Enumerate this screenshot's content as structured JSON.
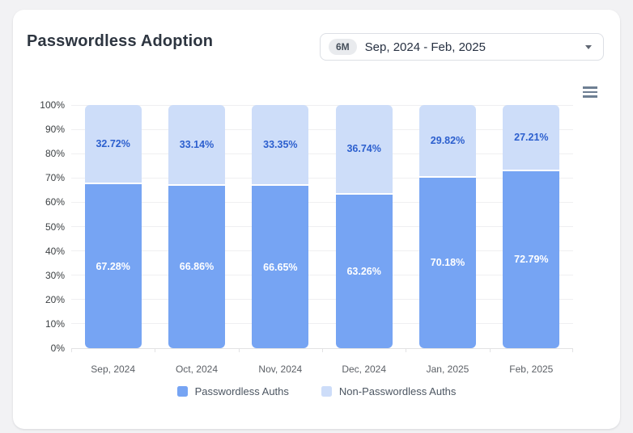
{
  "header": {
    "title": "Passwordless Adoption",
    "range_select": {
      "badge": "6M",
      "value": "Sep, 2024 - Feb, 2025"
    }
  },
  "icons": {
    "menu": "hamburger-icon",
    "select_caret": "chevron-down-icon"
  },
  "colors": {
    "page_background": "#f2f2f4",
    "card_background": "#ffffff",
    "grid": "#efeff1",
    "axis": "#e2e2e4",
    "title_text": "#2d3540",
    "legend_text": "#4c5662"
  },
  "chart_data": {
    "type": "bar",
    "stacked": true,
    "orientation": "vertical",
    "title": "Passwordless Adoption",
    "categories": [
      "Sep, 2024",
      "Oct, 2024",
      "Nov, 2024",
      "Dec, 2024",
      "Jan, 2025",
      "Feb, 2025"
    ],
    "series": [
      {
        "name": "Passwordless Auths",
        "color": "#76a4f3",
        "label_color": "#ffffff",
        "values": [
          67.28,
          66.86,
          66.65,
          63.26,
          70.18,
          72.79
        ]
      },
      {
        "name": "Non-Passwordless Auths",
        "color": "#cdddf9",
        "label_color": "#2c5fce",
        "values": [
          32.72,
          33.14,
          33.35,
          36.74,
          29.82,
          27.21
        ]
      }
    ],
    "value_suffix": "%",
    "ylim": [
      0,
      100
    ],
    "y_tick_step": 10,
    "y_tick_labels": [
      "0%",
      "10%",
      "20%",
      "30%",
      "40%",
      "50%",
      "60%",
      "70%",
      "80%",
      "90%",
      "100%"
    ],
    "grid": true,
    "legend_position": "bottom"
  }
}
